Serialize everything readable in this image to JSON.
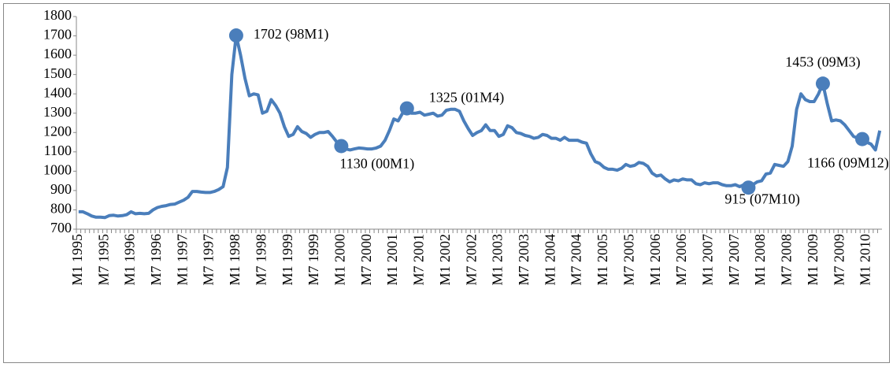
{
  "chart_data": {
    "type": "line",
    "categories": [
      "M1 1995",
      null,
      null,
      null,
      null,
      null,
      "M7 1995",
      null,
      null,
      null,
      null,
      null,
      "M1 1996",
      null,
      null,
      null,
      null,
      null,
      "M7 1996",
      null,
      null,
      null,
      null,
      null,
      "M1 1997",
      null,
      null,
      null,
      null,
      null,
      "M7 1997",
      null,
      null,
      null,
      null,
      null,
      "M1 1998",
      null,
      null,
      null,
      null,
      null,
      "M7 1998",
      null,
      null,
      null,
      null,
      null,
      "M1 1999",
      null,
      null,
      null,
      null,
      null,
      "M7 1999",
      null,
      null,
      null,
      null,
      null,
      "M1 2000",
      null,
      null,
      null,
      null,
      null,
      "M7 2000",
      null,
      null,
      null,
      null,
      null,
      "M1 2001",
      null,
      null,
      null,
      null,
      null,
      "M7 2001",
      null,
      null,
      null,
      null,
      null,
      "M1 2002",
      null,
      null,
      null,
      null,
      null,
      "M7 2002",
      null,
      null,
      null,
      null,
      null,
      "M1 2003",
      null,
      null,
      null,
      null,
      null,
      "M7 2003",
      null,
      null,
      null,
      null,
      null,
      "M1 2004",
      null,
      null,
      null,
      null,
      null,
      "M7 2004",
      null,
      null,
      null,
      null,
      null,
      "M1 2005",
      null,
      null,
      null,
      null,
      null,
      "M7 2005",
      null,
      null,
      null,
      null,
      null,
      "M1 2006",
      null,
      null,
      null,
      null,
      null,
      "M7 2006",
      null,
      null,
      null,
      null,
      null,
      "M1 2007",
      null,
      null,
      null,
      null,
      null,
      "M7 2007",
      null,
      null,
      null,
      null,
      null,
      "M1 2008",
      null,
      null,
      null,
      null,
      null,
      "M7 2008",
      null,
      null,
      null,
      null,
      null,
      "M1 2009",
      null,
      null,
      null,
      null,
      null,
      "M7 2009",
      null,
      null,
      null,
      null,
      null,
      "M1 2010",
      null,
      null,
      null
    ],
    "values": [
      790,
      790,
      780,
      768,
      762,
      762,
      760,
      770,
      772,
      768,
      770,
      775,
      790,
      780,
      782,
      780,
      782,
      800,
      812,
      818,
      822,
      828,
      830,
      840,
      850,
      865,
      895,
      895,
      892,
      890,
      890,
      895,
      905,
      920,
      1020,
      1500,
      1702,
      1600,
      1480,
      1390,
      1400,
      1395,
      1300,
      1310,
      1370,
      1340,
      1300,
      1230,
      1180,
      1190,
      1230,
      1205,
      1195,
      1175,
      1190,
      1200,
      1200,
      1205,
      1180,
      1150,
      1130,
      1115,
      1110,
      1115,
      1120,
      1118,
      1115,
      1115,
      1120,
      1130,
      1160,
      1210,
      1270,
      1260,
      1300,
      1325,
      1300,
      1300,
      1305,
      1290,
      1295,
      1300,
      1285,
      1290,
      1315,
      1320,
      1320,
      1310,
      1260,
      1220,
      1185,
      1200,
      1210,
      1240,
      1210,
      1210,
      1180,
      1190,
      1235,
      1225,
      1200,
      1195,
      1185,
      1180,
      1170,
      1175,
      1190,
      1185,
      1170,
      1170,
      1160,
      1175,
      1160,
      1160,
      1160,
      1150,
      1145,
      1090,
      1050,
      1040,
      1020,
      1010,
      1010,
      1005,
      1015,
      1035,
      1025,
      1030,
      1045,
      1040,
      1025,
      990,
      975,
      980,
      960,
      945,
      955,
      950,
      960,
      955,
      955,
      935,
      930,
      940,
      935,
      940,
      940,
      930,
      925,
      925,
      930,
      920,
      930,
      915,
      930,
      945,
      950,
      985,
      990,
      1035,
      1030,
      1025,
      1050,
      1130,
      1320,
      1400,
      1370,
      1360,
      1360,
      1400,
      1453,
      1350,
      1260,
      1265,
      1260,
      1240,
      1210,
      1180,
      1170,
      1166,
      1150,
      1140,
      1110,
      1210
    ],
    "value_labels": [
      null,
      null,
      null,
      null,
      null,
      null,
      null,
      null,
      null,
      null,
      null,
      null,
      null,
      null,
      null,
      null,
      null,
      null,
      null,
      null,
      null,
      null,
      null,
      null,
      null,
      null,
      null,
      null,
      null,
      null,
      null,
      null,
      null,
      null,
      null,
      null,
      "1702 (98M1)",
      null,
      null,
      null,
      null,
      null,
      null,
      null,
      null,
      null,
      null,
      null,
      null,
      null,
      null,
      null,
      null,
      null,
      null,
      null,
      null,
      null,
      null,
      null,
      "1130 (00M1)",
      null,
      null,
      null,
      null,
      null,
      null,
      null,
      null,
      null,
      null,
      null,
      null,
      null,
      null,
      "1325 (01M4)",
      null,
      null,
      null,
      null,
      null,
      null,
      null,
      null,
      null,
      null,
      null,
      null,
      null,
      null,
      null,
      null,
      null,
      null,
      null,
      null,
      null,
      null,
      null,
      null,
      null,
      null,
      null,
      null,
      null,
      null,
      null,
      null,
      null,
      null,
      null,
      null,
      null,
      null,
      null,
      null,
      null,
      null,
      null,
      null,
      null,
      null,
      null,
      null,
      null,
      null,
      null,
      null,
      null,
      null,
      null,
      null,
      null,
      null,
      null,
      null,
      null,
      null,
      null,
      null,
      null,
      null,
      null,
      null,
      null,
      null,
      null,
      null,
      null,
      null,
      null,
      null,
      null,
      "915 (07M10)",
      null,
      null,
      null,
      null,
      null,
      null,
      null,
      null,
      null,
      null,
      null,
      null,
      null,
      null,
      null,
      null,
      "1453 (09M3)",
      null,
      null,
      null,
      null,
      null,
      null,
      null,
      null,
      "1166 (09M12)",
      null,
      null,
      null,
      null
    ],
    "color": "#4a7ebb",
    "ylim": [
      700,
      1800
    ],
    "yticks": [
      700,
      800,
      900,
      1000,
      1100,
      1200,
      1300,
      1400,
      1500,
      1600,
      1700,
      1800
    ],
    "grid": false
  }
}
